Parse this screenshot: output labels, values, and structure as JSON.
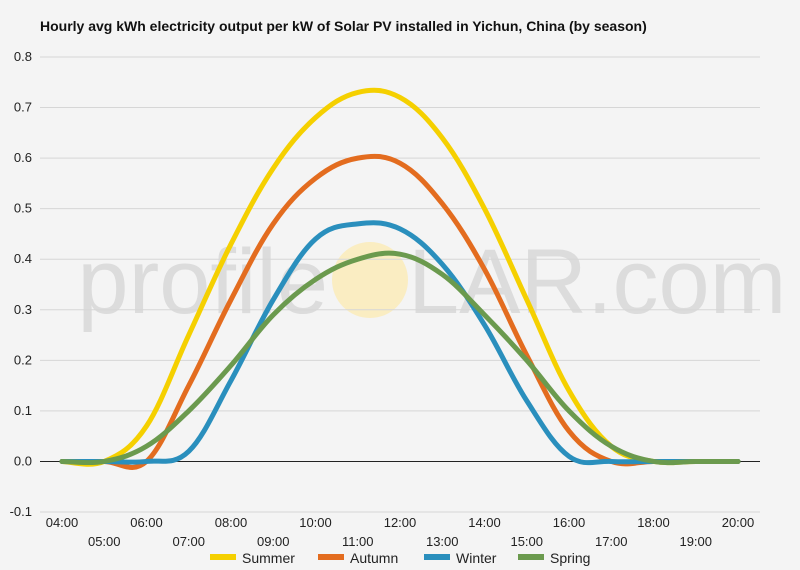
{
  "chart_data": {
    "type": "line",
    "title": "Hourly avg kWh electricity output per kW of Solar PV installed in Yichun, China (by season)",
    "xlabel": "",
    "ylabel": "",
    "x": [
      "04:00",
      "05:00",
      "06:00",
      "07:00",
      "08:00",
      "09:00",
      "10:00",
      "11:00",
      "12:00",
      "13:00",
      "14:00",
      "15:00",
      "16:00",
      "17:00",
      "18:00",
      "19:00",
      "20:00"
    ],
    "ylim": [
      -0.1,
      0.8
    ],
    "yticks": [
      "-0.1",
      "0.0",
      "0.1",
      "0.2",
      "0.3",
      "0.4",
      "0.5",
      "0.6",
      "0.7",
      "0.8"
    ],
    "grid": true,
    "legend_position": "bottom",
    "series": [
      {
        "name": "Summer",
        "color": "#f5d000",
        "values": [
          0.0,
          0.0,
          0.07,
          0.25,
          0.43,
          0.58,
          0.68,
          0.73,
          0.72,
          0.64,
          0.5,
          0.32,
          0.14,
          0.03,
          0.0,
          0.0,
          0.0
        ]
      },
      {
        "name": "Autumn",
        "color": "#e36c1f",
        "values": [
          0.0,
          0.0,
          0.0,
          0.15,
          0.32,
          0.47,
          0.56,
          0.6,
          0.59,
          0.51,
          0.38,
          0.21,
          0.06,
          0.0,
          0.0,
          0.0,
          0.0
        ]
      },
      {
        "name": "Winter",
        "color": "#2a8fbd",
        "values": [
          0.0,
          0.0,
          0.0,
          0.02,
          0.16,
          0.32,
          0.44,
          0.47,
          0.46,
          0.39,
          0.27,
          0.12,
          0.01,
          0.0,
          0.0,
          0.0,
          0.0
        ]
      },
      {
        "name": "Spring",
        "color": "#6b9a4e",
        "values": [
          0.0,
          0.0,
          0.03,
          0.1,
          0.19,
          0.29,
          0.36,
          0.4,
          0.41,
          0.37,
          0.29,
          0.2,
          0.1,
          0.03,
          0.0,
          0.0,
          0.0
        ]
      }
    ]
  },
  "watermark": {
    "text_left": "profile",
    "text_right": "LAR.com",
    "sun_color": "#fde7a0"
  }
}
